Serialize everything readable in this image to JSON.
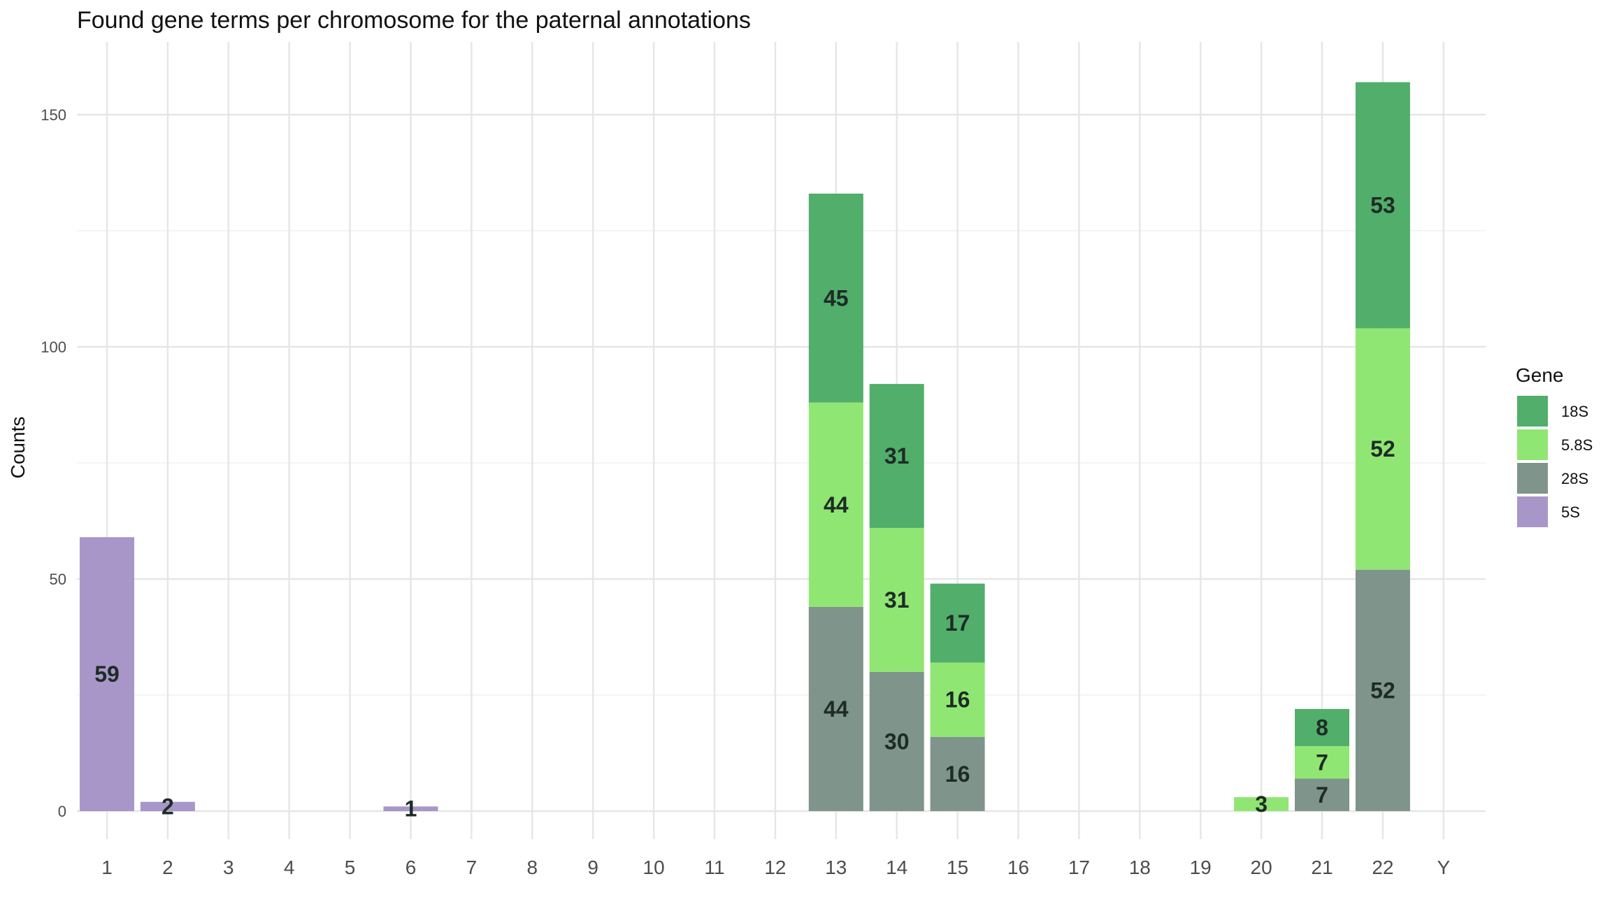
{
  "chart_data": {
    "type": "bar",
    "stacked": true,
    "title": "Found gene terms per chromosome for the paternal annotations",
    "xlabel": "",
    "ylabel": "Counts",
    "categories": [
      "1",
      "2",
      "3",
      "4",
      "5",
      "6",
      "7",
      "8",
      "9",
      "10",
      "11",
      "12",
      "13",
      "14",
      "15",
      "16",
      "17",
      "18",
      "19",
      "20",
      "21",
      "22",
      "Y"
    ],
    "ylim": [
      0,
      160
    ],
    "yticks": [
      0,
      50,
      100,
      150
    ],
    "grid": true,
    "legend": {
      "title": "Gene",
      "placement": "right"
    },
    "series": [
      {
        "name": "28S",
        "color": "#7f948a",
        "values": [
          0,
          0,
          0,
          0,
          0,
          0,
          0,
          0,
          0,
          0,
          0,
          0,
          44,
          30,
          16,
          0,
          0,
          0,
          0,
          0,
          7,
          52,
          0
        ]
      },
      {
        "name": "5.8S",
        "color": "#90e672",
        "values": [
          0,
          0,
          0,
          0,
          0,
          0,
          0,
          0,
          0,
          0,
          0,
          0,
          44,
          31,
          16,
          0,
          0,
          0,
          0,
          3,
          7,
          52,
          0
        ]
      },
      {
        "name": "18S",
        "color": "#52ae6b",
        "values": [
          0,
          0,
          0,
          0,
          0,
          0,
          0,
          0,
          0,
          0,
          0,
          0,
          45,
          31,
          17,
          0,
          0,
          0,
          0,
          0,
          8,
          53,
          0
        ]
      },
      {
        "name": "5S",
        "color": "#a896c8",
        "values": [
          59,
          2,
          0,
          0,
          0,
          1,
          0,
          0,
          0,
          0,
          0,
          0,
          0,
          0,
          0,
          0,
          0,
          0,
          0,
          0,
          0,
          0,
          0
        ]
      }
    ],
    "legend_order": [
      "18S",
      "5.8S",
      "28S",
      "5S"
    ]
  }
}
